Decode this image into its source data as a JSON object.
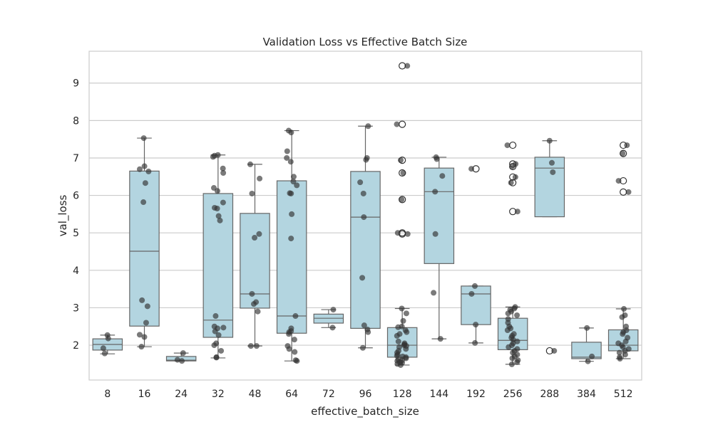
{
  "chart_data": {
    "type": "box",
    "title": "Validation Loss vs Effective Batch Size",
    "xlabel": "effective_batch_size",
    "ylabel": "val_loss",
    "ylim": [
      1.07,
      9.85
    ],
    "yticks": [
      2,
      3,
      4,
      5,
      6,
      7,
      8,
      9
    ],
    "grid": "horizontal",
    "colors": {
      "box": "#b3d5e0",
      "edge": "#666666",
      "point": "#333333",
      "grid": "#cccccc"
    },
    "categories": [
      "8",
      "16",
      "24",
      "32",
      "48",
      "64",
      "72",
      "96",
      "128",
      "144",
      "192",
      "256",
      "288",
      "384",
      "512"
    ],
    "boxes": [
      {
        "q1": 1.87,
        "median": 2.02,
        "q3": 2.17,
        "whislo": 1.77,
        "whishi": 2.27,
        "fliers": []
      },
      {
        "q1": 2.51,
        "median": 4.51,
        "q3": 6.65,
        "whislo": 1.96,
        "whishi": 7.53,
        "fliers": []
      },
      {
        "q1": 1.58,
        "median": 1.6,
        "q3": 1.7,
        "whislo": 1.58,
        "whishi": 1.79,
        "fliers": []
      },
      {
        "q1": 2.21,
        "median": 2.67,
        "q3": 6.05,
        "whislo": 1.66,
        "whishi": 7.08,
        "fliers": []
      },
      {
        "q1": 2.99,
        "median": 3.37,
        "q3": 5.52,
        "whislo": 1.98,
        "whishi": 6.83,
        "fliers": []
      },
      {
        "q1": 2.32,
        "median": 2.78,
        "q3": 6.39,
        "whislo": 1.58,
        "whishi": 7.73,
        "fliers": []
      },
      {
        "q1": 2.59,
        "median": 2.72,
        "q3": 2.83,
        "whislo": 2.47,
        "whishi": 2.95,
        "fliers": []
      },
      {
        "q1": 2.45,
        "median": 5.42,
        "q3": 6.64,
        "whislo": 1.93,
        "whishi": 7.85,
        "fliers": []
      },
      {
        "q1": 1.68,
        "median": 2.0,
        "q3": 2.47,
        "whislo": 1.47,
        "whishi": 2.98,
        "fliers": [
          9.46,
          7.9,
          6.94,
          6.6,
          5.89,
          5.0,
          4.97
        ]
      },
      {
        "q1": 4.18,
        "median": 6.1,
        "q3": 6.73,
        "whislo": 2.17,
        "whishi": 7.02,
        "fliers": []
      },
      {
        "q1": 2.55,
        "median": 3.37,
        "q3": 3.58,
        "whislo": 2.06,
        "whishi": 3.58,
        "fliers": [
          6.71
        ]
      },
      {
        "q1": 1.88,
        "median": 2.13,
        "q3": 2.72,
        "whislo": 1.49,
        "whishi": 3.02,
        "fliers": [
          7.34,
          6.84,
          6.77,
          6.49,
          6.34,
          5.57
        ]
      },
      {
        "q1": 5.43,
        "median": 6.73,
        "q3": 7.02,
        "whislo": 5.43,
        "whishi": 7.46,
        "fliers": [
          1.85
        ]
      },
      {
        "q1": 1.64,
        "median": 1.68,
        "q3": 2.08,
        "whislo": 1.57,
        "whishi": 2.46,
        "fliers": []
      },
      {
        "q1": 1.85,
        "median": 2.0,
        "q3": 2.41,
        "whislo": 1.64,
        "whishi": 2.97,
        "fliers": [
          7.34,
          7.12,
          6.39,
          6.09
        ]
      }
    ],
    "points": [
      [
        2.27,
        2.18,
        1.92,
        1.78
      ],
      [
        7.53,
        6.78,
        6.7,
        6.64,
        6.33,
        5.82,
        3.2,
        3.04,
        2.6,
        2.28,
        2.22,
        1.96
      ],
      [
        1.79,
        1.61,
        1.58
      ],
      [
        7.08,
        7.06,
        7.03,
        6.72,
        6.6,
        6.2,
        6.12,
        5.81,
        5.67,
        5.65,
        5.45,
        5.33,
        2.78,
        2.5,
        2.47,
        2.45,
        2.37,
        2.27,
        2.05,
        2.0,
        1.85,
        1.68,
        1.67
      ],
      [
        6.83,
        6.45,
        6.05,
        4.97,
        4.87,
        3.37,
        3.15,
        3.1,
        2.9,
        1.98,
        1.98
      ],
      [
        7.73,
        7.68,
        7.18,
        7.0,
        6.9,
        6.5,
        6.37,
        6.27,
        6.06,
        6.05,
        5.5,
        4.85,
        2.78,
        2.45,
        2.38,
        2.35,
        2.3,
        2.15,
        1.98,
        1.9,
        1.82,
        1.6,
        1.58
      ],
      [
        2.95,
        2.47
      ],
      [
        7.85,
        7.0,
        6.95,
        6.35,
        6.05,
        5.42,
        3.8,
        2.53,
        2.42,
        2.35,
        1.93
      ],
      [
        9.46,
        7.9,
        6.94,
        6.6,
        5.89,
        5.0,
        4.97,
        2.98,
        2.85,
        2.65,
        2.5,
        2.48,
        2.4,
        2.35,
        2.3,
        2.25,
        2.1,
        2.05,
        2.02,
        2.0,
        1.98,
        1.95,
        1.9,
        1.85,
        1.8,
        1.75,
        1.72,
        1.7,
        1.68,
        1.65,
        1.62,
        1.6,
        1.58,
        1.55,
        1.53,
        1.5,
        1.47
      ],
      [
        7.02,
        6.97,
        6.52,
        6.1,
        4.97,
        3.4,
        2.17
      ],
      [
        6.71,
        3.58,
        3.37,
        2.55,
        2.06
      ],
      [
        7.34,
        6.84,
        6.77,
        6.49,
        6.34,
        5.57,
        3.02,
        2.98,
        2.95,
        2.9,
        2.85,
        2.8,
        2.7,
        2.6,
        2.5,
        2.45,
        2.4,
        2.3,
        2.25,
        2.2,
        2.15,
        2.1,
        2.05,
        2.0,
        1.95,
        1.9,
        1.85,
        1.8,
        1.75,
        1.7,
        1.65,
        1.6,
        1.55,
        1.49
      ],
      [
        7.46,
        6.87,
        6.62,
        1.85
      ],
      [
        2.46,
        1.7,
        1.57
      ],
      [
        7.34,
        7.12,
        6.39,
        6.09,
        2.97,
        2.8,
        2.75,
        2.5,
        2.4,
        2.35,
        2.3,
        2.2,
        2.1,
        2.05,
        2.0,
        1.95,
        1.9,
        1.85,
        1.8,
        1.75,
        1.68,
        1.64
      ]
    ]
  }
}
